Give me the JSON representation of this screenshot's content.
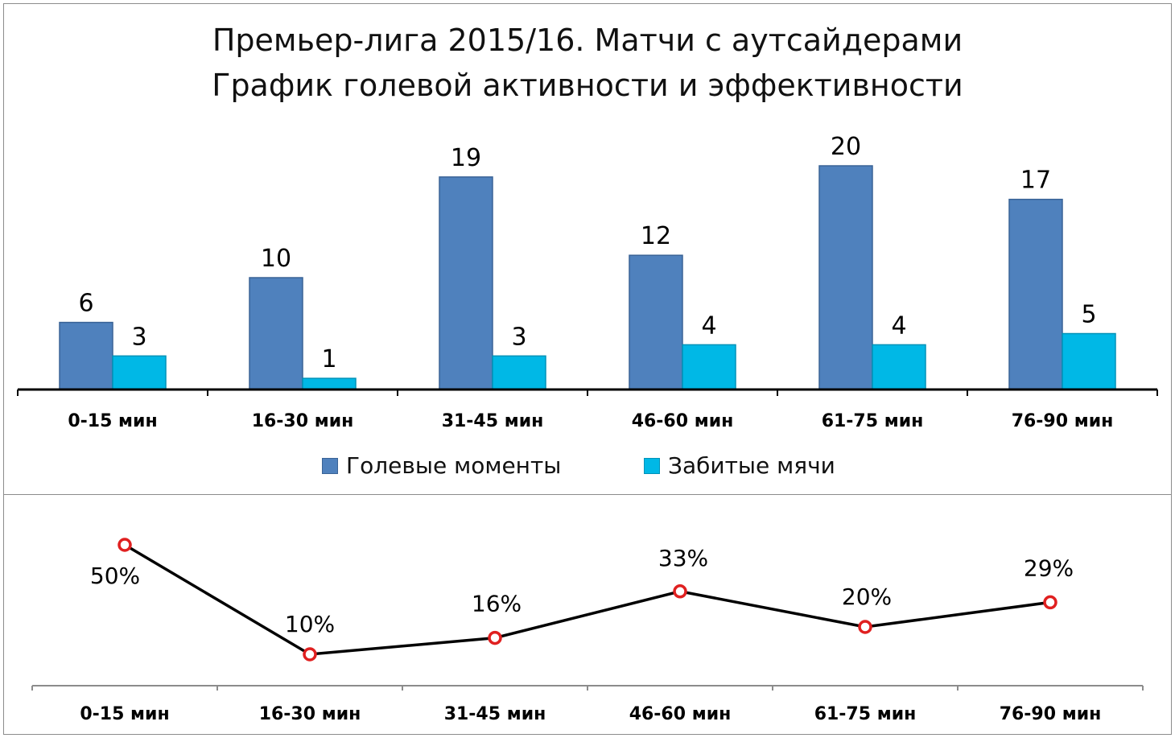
{
  "title": {
    "line1": "Премьер-лига 2015/16. Матчи с аутсайдерами",
    "line2": "График голевой активности и эффективности"
  },
  "colors": {
    "series1": "#4f81bd",
    "series1_edge": "#3a6396",
    "series2": "#00b8e6",
    "series2_edge": "#0092b8",
    "line": "#000000",
    "marker": "#e02020"
  },
  "legend": {
    "items": [
      "Голевые моменты",
      "Забитые мячи"
    ]
  },
  "chart_data": [
    {
      "type": "bar",
      "categories": [
        "0-15 мин",
        "16-30 мин",
        "31-45 мин",
        "46-60 мин",
        "61-75 мин",
        "76-90 мин"
      ],
      "series": [
        {
          "name": "Голевые моменты",
          "values": [
            6,
            10,
            19,
            12,
            20,
            17
          ]
        },
        {
          "name": "Забитые мячи",
          "values": [
            3,
            1,
            3,
            4,
            4,
            5
          ]
        }
      ],
      "ylim": [
        0,
        20
      ],
      "legend_position": "bottom",
      "grid": false
    },
    {
      "type": "line",
      "categories": [
        "0-15 мин",
        "16-30 мин",
        "31-45 мин",
        "46-60 мин",
        "61-75 мин",
        "76-90 мин"
      ],
      "values": [
        50,
        10,
        16,
        33,
        20,
        29
      ],
      "value_labels": [
        "50%",
        "10%",
        "16%",
        "33%",
        "20%",
        "29%"
      ],
      "ylim": [
        10,
        50
      ],
      "grid": false
    }
  ]
}
